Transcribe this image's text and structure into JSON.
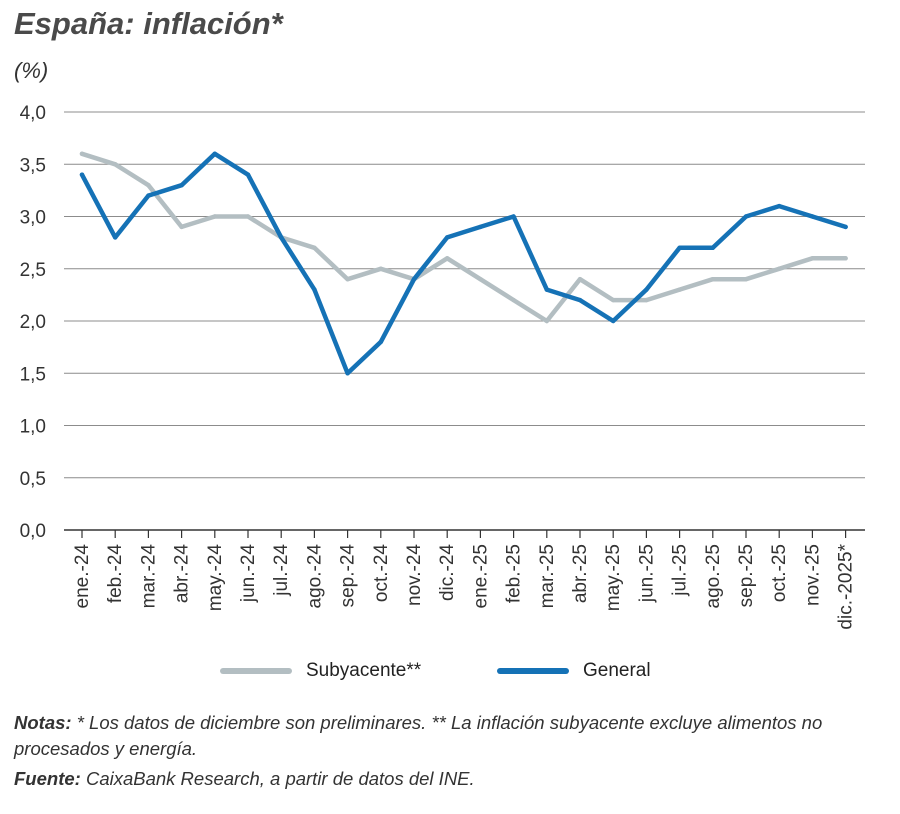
{
  "header": {
    "title": "España: inflación*",
    "unit": "(%)"
  },
  "chart_data": {
    "type": "line",
    "categories": [
      "ene.-24",
      "feb.-24",
      "mar.-24",
      "abr.-24",
      "may.-24",
      "jun.-24",
      "jul.-24",
      "ago.-24",
      "sep.-24",
      "oct.-24",
      "nov.-24",
      "dic.-24",
      "ene.-25",
      "feb.-25",
      "mar.-25",
      "abr.-25",
      "may.-25",
      "jun.-25",
      "jul.-25",
      "ago.-25",
      "sep.-25",
      "oct.-25",
      "nov.-25",
      "dic.-2025*"
    ],
    "series": [
      {
        "name": "Subyacente**",
        "color": "#b3bec2",
        "values": [
          3.6,
          3.5,
          3.3,
          2.9,
          3.0,
          3.0,
          2.8,
          2.7,
          2.4,
          2.5,
          2.4,
          2.6,
          2.4,
          2.2,
          2.0,
          2.4,
          2.2,
          2.2,
          2.3,
          2.4,
          2.4,
          2.5,
          2.6,
          2.6
        ]
      },
      {
        "name": "General",
        "color": "#1572b6",
        "values": [
          3.4,
          2.8,
          3.2,
          3.3,
          3.6,
          3.4,
          2.8,
          2.3,
          1.5,
          1.8,
          2.4,
          2.8,
          2.9,
          3.0,
          2.3,
          2.2,
          2.0,
          2.3,
          2.7,
          2.7,
          3.0,
          3.1,
          3.0,
          2.9
        ]
      }
    ],
    "ylim": [
      0,
      4
    ],
    "yticks": [
      "0,0",
      "0,5",
      "1,0",
      "1,5",
      "2,0",
      "2,5",
      "3,0",
      "3,5",
      "4,0"
    ],
    "grid": true,
    "legend_position": "bottom"
  },
  "notes": {
    "label": "Notas:",
    "text": "* Los datos de diciembre son preliminares. ** La inflación subyacente excluye alimentos no procesados y energía."
  },
  "source": {
    "label": "Fuente:",
    "text": "CaixaBank Research, a partir de datos del INE."
  }
}
